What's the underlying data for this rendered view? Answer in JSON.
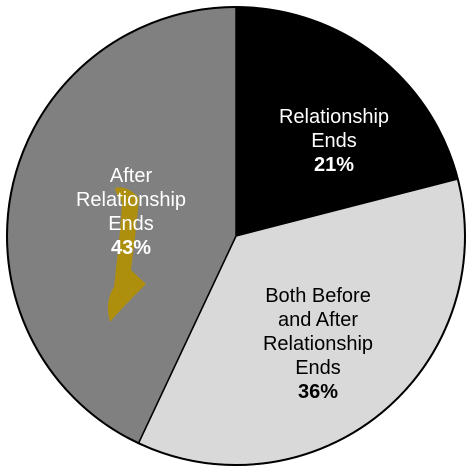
{
  "chart_data": {
    "type": "pie",
    "slices": [
      {
        "label_lines": [
          "Relationship",
          "Ends"
        ],
        "value": 21,
        "value_label": "21%",
        "color": "#000000",
        "label_color": "#ffffff",
        "pct_color": "#ffffff"
      },
      {
        "label_lines": [
          "Both Before",
          "and After",
          "Relationship",
          "Ends"
        ],
        "value": 36,
        "value_label": "36%",
        "color": "#d9d9d9",
        "label_color": "#000000",
        "pct_color": "#000000"
      },
      {
        "label_lines": [
          "After",
          "Relationship",
          "Ends"
        ],
        "value": 43,
        "value_label": "43%",
        "color": "#808080",
        "label_color": "#ffffff",
        "pct_color": "#ffffff"
      }
    ],
    "edge_color": "#000000",
    "highlight_color": "#e6b800"
  }
}
